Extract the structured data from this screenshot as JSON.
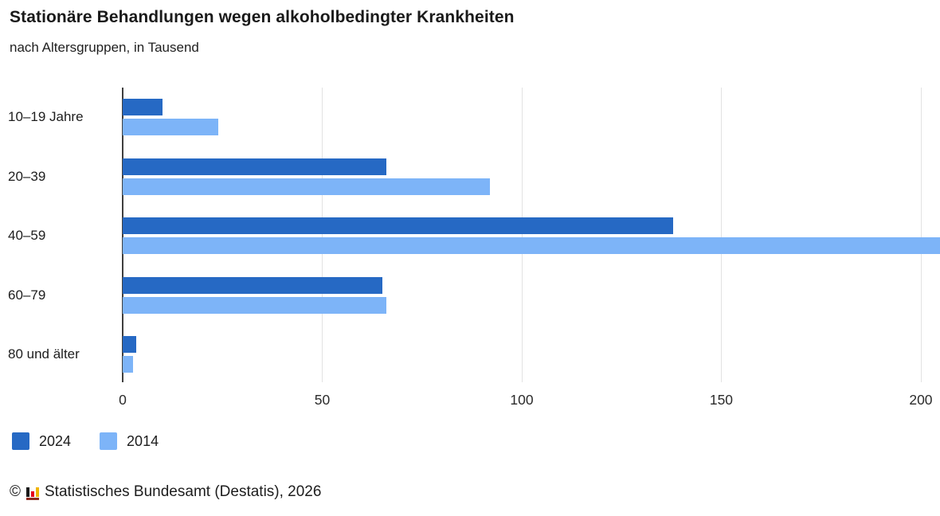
{
  "header": {
    "title": "Stationäre Behandlungen wegen alkoholbedingter Krankheiten",
    "subtitle": "nach Altersgruppen, in Tausend"
  },
  "chart_data": {
    "type": "bar",
    "orientation": "horizontal",
    "title": "Stationäre Behandlungen wegen alkoholbedingter Krankheiten",
    "subtitle": "nach Altersgruppen, in Tausend",
    "categories": [
      "10–19 Jahre",
      "20–39",
      "40–59",
      "60–79",
      "80 und älter"
    ],
    "series": [
      {
        "name": "2024",
        "color": "#2669c4",
        "values": [
          10,
          66,
          138,
          65,
          3.3
        ]
      },
      {
        "name": "2014",
        "color": "#7db4f8",
        "values": [
          24,
          92,
          205,
          66,
          2.5
        ]
      }
    ],
    "x_ticks": [
      0,
      50,
      100,
      150,
      200
    ],
    "xlim": [
      0,
      204.8
    ],
    "xlabel": "",
    "ylabel": "",
    "grid": true,
    "legend_position": "bottom-left",
    "axis_color": "#3f3f3f",
    "gridline_color": "#e2e2e2"
  },
  "footer": {
    "copyright_symbol": "©",
    "logo_icon": "destatis-bar-chart-logo",
    "source_text": "Statistisches Bundesamt (Destatis), 2026"
  }
}
